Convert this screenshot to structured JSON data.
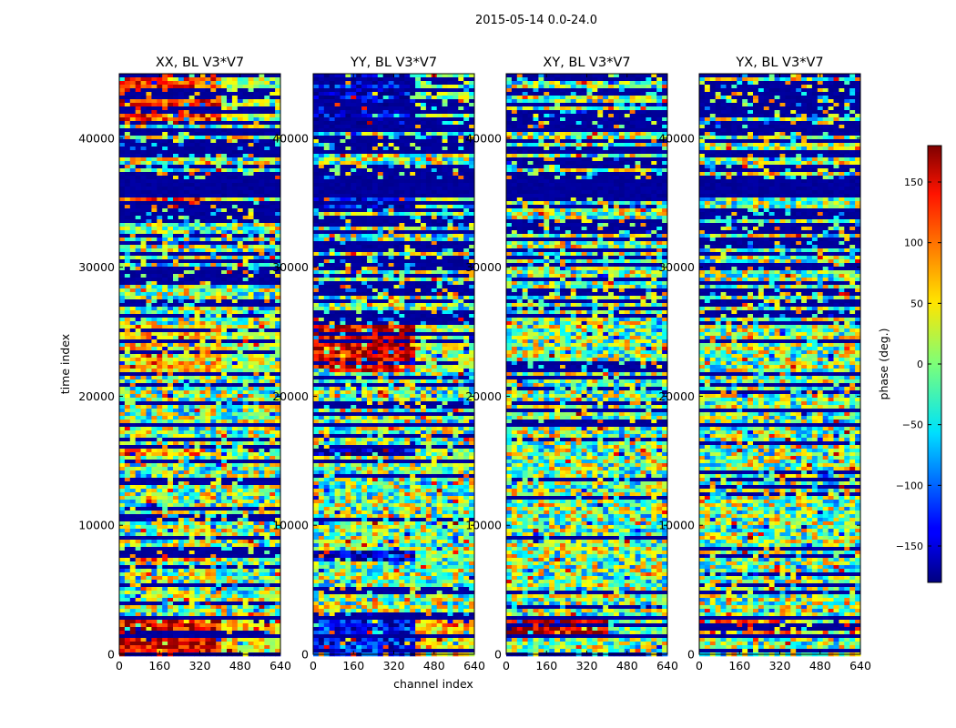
{
  "chart_data": {
    "type": "heatmap",
    "title": "2015-05-14 0.0-24.0",
    "xlabel": "channel index",
    "ylabel": "time index",
    "xlim": [
      0,
      640
    ],
    "ylim": [
      0,
      45000
    ],
    "xticks": [
      0,
      160,
      320,
      480,
      640
    ],
    "yticks": [
      0,
      10000,
      20000,
      30000,
      40000
    ],
    "panels": [
      {
        "name": "XX, BL V3*V7",
        "bias": [
          {
            "from": 0,
            "to": 2700,
            "left": 140,
            "right": 50
          },
          {
            "from": 7200,
            "to": 8000,
            "left": 90,
            "right": 0
          },
          {
            "from": 15300,
            "to": 15800,
            "left": 80,
            "right": 0
          },
          {
            "from": 22000,
            "to": 25500,
            "left": 60,
            "right": 20
          },
          {
            "from": 34500,
            "to": 35500,
            "left": 120,
            "right": 0
          },
          {
            "from": 37000,
            "to": 37500,
            "left": 120,
            "right": 0
          },
          {
            "from": 41000,
            "to": 45000,
            "left": 120,
            "right": 20
          }
        ]
      },
      {
        "name": "YY, BL V3*V7",
        "bias": [
          {
            "from": 0,
            "to": 2700,
            "left": -130,
            "right": 60
          },
          {
            "from": 7200,
            "to": 8000,
            "left": -160,
            "right": 0
          },
          {
            "from": 15300,
            "to": 15800,
            "left": -160,
            "right": 0
          },
          {
            "from": 22000,
            "to": 25500,
            "left": 150,
            "right": 20
          },
          {
            "from": 34500,
            "to": 35500,
            "left": -130,
            "right": 0
          },
          {
            "from": 41000,
            "to": 45000,
            "left": -150,
            "right": 0
          }
        ]
      },
      {
        "name": "XY, BL V3*V7",
        "bias": [
          {
            "from": 1500,
            "to": 2700,
            "left": 160,
            "right": 0
          }
        ]
      },
      {
        "name": "YX, BL V3*V7",
        "bias": [
          {
            "from": 1500,
            "to": 2700,
            "left": 90,
            "right": 0
          }
        ]
      }
    ],
    "colorbar": {
      "label": "phase (deg.)",
      "range": [
        -180,
        180
      ],
      "ticks": [
        -150,
        -100,
        -50,
        0,
        50,
        100,
        150
      ],
      "tick_labels": [
        "−150",
        "−100",
        "−50",
        "0",
        "50",
        "100",
        "150"
      ],
      "colormap": "jet"
    }
  }
}
